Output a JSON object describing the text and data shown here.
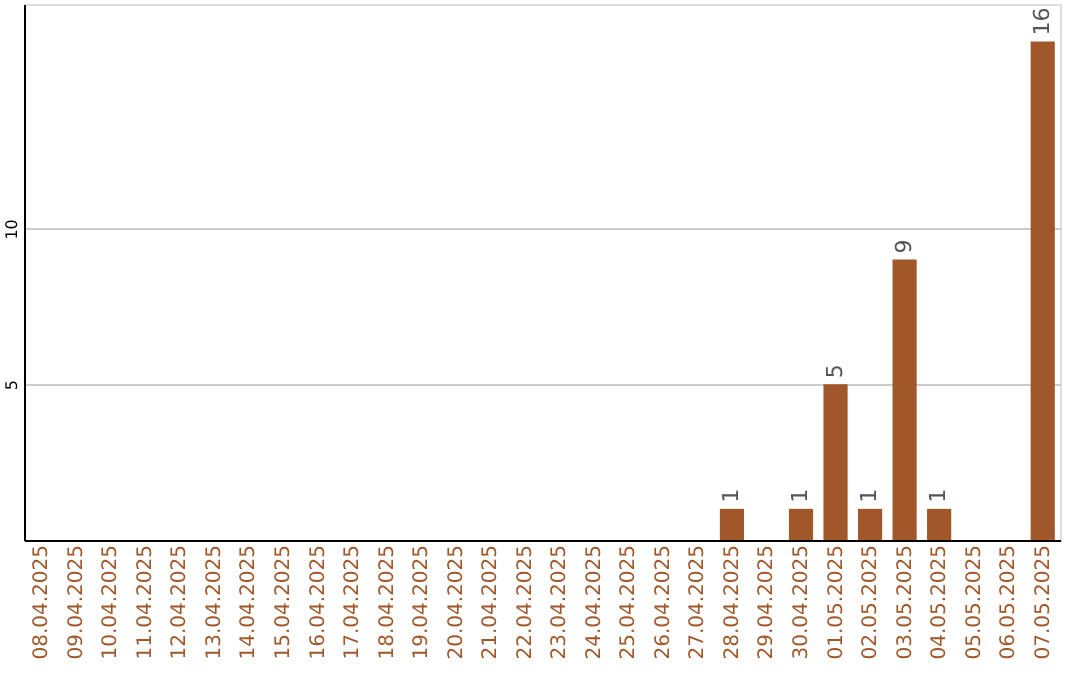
{
  "chart_data": {
    "type": "bar",
    "categories": [
      "08.04.2025",
      "09.04.2025",
      "10.04.2025",
      "11.04.2025",
      "12.04.2025",
      "13.04.2025",
      "14.04.2025",
      "15.04.2025",
      "16.04.2025",
      "17.04.2025",
      "18.04.2025",
      "19.04.2025",
      "20.04.2025",
      "21.04.2025",
      "22.04.2025",
      "23.04.2025",
      "24.04.2025",
      "25.04.2025",
      "26.04.2025",
      "27.04.2025",
      "28.04.2025",
      "29.04.2025",
      "30.04.2025",
      "01.05.2025",
      "02.05.2025",
      "03.05.2025",
      "04.05.2025",
      "05.05.2025",
      "06.05.2025",
      "07.05.2025"
    ],
    "values": [
      null,
      null,
      null,
      null,
      null,
      null,
      null,
      null,
      null,
      null,
      null,
      null,
      null,
      null,
      null,
      null,
      null,
      null,
      null,
      null,
      1,
      null,
      1,
      5,
      1,
      9,
      1,
      null,
      null,
      16
    ],
    "color": "#a0582a",
    "ylim": [
      0,
      17.2
    ],
    "yticks": [
      5,
      10
    ],
    "grid": "y",
    "data_labels": true
  }
}
